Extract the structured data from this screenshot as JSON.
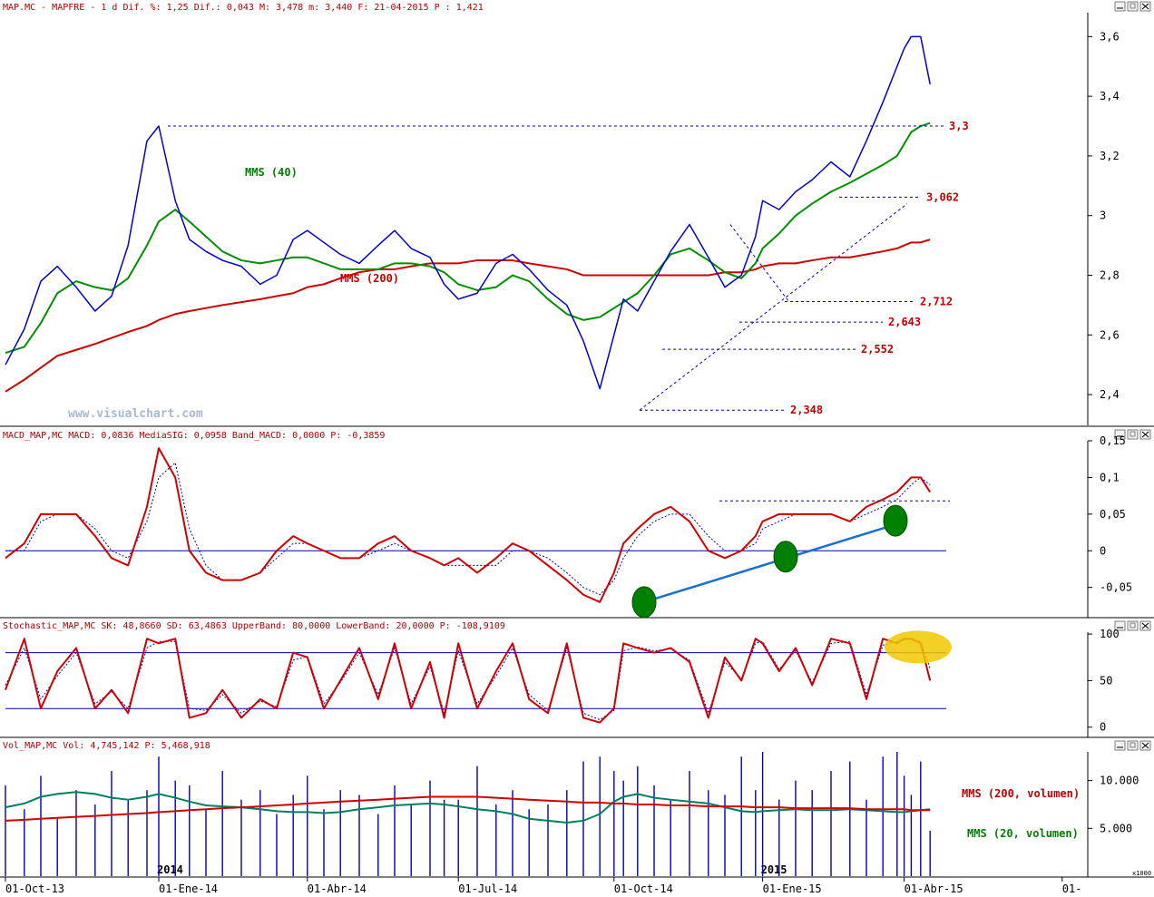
{
  "panels": {
    "price": {
      "header": "MAP.MC - MAPFRE -  1 d Dif. %: 1,25 Dif.: 0,043 M: 3,478 m: 3,440 F: 21-04-2015 P : 1,421",
      "yticks": [
        "3,6",
        "3,4",
        "3,2",
        "3",
        "2,8",
        "2,6",
        "2,4"
      ],
      "ytick_values": [
        3.6,
        3.4,
        3.2,
        3.0,
        2.8,
        2.6,
        2.4
      ],
      "ylim": [
        2.3,
        3.68
      ],
      "ma40_label": "MMS (40)",
      "ma200_label": "MMS (200)",
      "levels": [
        {
          "label": "3,3",
          "value": 3.3
        },
        {
          "label": "3,062",
          "value": 3.062
        },
        {
          "label": "2,712",
          "value": 2.712
        },
        {
          "label": "2,643",
          "value": 2.643
        },
        {
          "label": "2,552",
          "value": 2.552
        },
        {
          "label": "2,348",
          "value": 2.348
        }
      ],
      "watermark": "www.visualchart.com"
    },
    "macd": {
      "header": "MACD_MAP,MC MACD: 0,0836 MediaSIG: 0,0958 Band_MACD: 0,0000 P: -0,3859",
      "yticks": [
        "0,15",
        "0,1",
        "0,05",
        "0",
        "-0,05"
      ],
      "ytick_values": [
        0.15,
        0.1,
        0.05,
        0.0,
        -0.05
      ],
      "ylim": [
        -0.09,
        0.15
      ]
    },
    "stochastic": {
      "header": "Stochastic_MAP,MC SK: 48,8660 SD: 63,4863 UpperBand: 80,0000 LowerBand: 20,0000 P: -108,9109",
      "yticks": [
        "100",
        "50",
        "0"
      ],
      "ytick_values": [
        100,
        50,
        0
      ],
      "ylim": [
        -10,
        102
      ]
    },
    "volume": {
      "header": "Vol_MAP,MC Vol: 4,745,142 P: 5,468,918",
      "yticks": [
        "10.000",
        "5.000"
      ],
      "ytick_values": [
        10000,
        5000
      ],
      "ylim": [
        0,
        13000
      ],
      "ma200_label": "MMS (200, volumen)",
      "ma20_label": "MMS (20, volumen)",
      "unit": "x1000"
    }
  },
  "xaxis": {
    "labels": [
      "01-Oct-13",
      "01-Ene-14",
      "01-Abr-14",
      "01-Jul-14",
      "01-Oct-14",
      "01-Ene-15",
      "01-Abr-15",
      "01-"
    ],
    "positions": [
      0,
      65,
      128,
      192,
      258,
      321,
      381,
      448
    ],
    "year_labels": [
      {
        "text": "2014",
        "position": 65
      },
      {
        "text": "2015",
        "position": 321
      }
    ]
  },
  "colors": {
    "price": "#0000d0",
    "ma40": "#009000",
    "ma200": "#d00000",
    "header": "#b00000",
    "level": "#c00000",
    "trend": "#1a6fd0",
    "signal_circle": "#008000",
    "highlight": "#f0c800",
    "volume_bar": "#0000b0",
    "vol_ma20": "#008060"
  },
  "chart_data": [
    {
      "type": "line",
      "name_hint": "price panel",
      "x": [
        0,
        8,
        15,
        22,
        30,
        38,
        45,
        52,
        60,
        65,
        72,
        78,
        85,
        92,
        100,
        108,
        115,
        122,
        128,
        135,
        142,
        150,
        158,
        165,
        172,
        180,
        186,
        192,
        200,
        208,
        215,
        222,
        230,
        238,
        245,
        252,
        258,
        262,
        268,
        275,
        282,
        290,
        298,
        305,
        312,
        318,
        321,
        328,
        335,
        342,
        350,
        358,
        365,
        372,
        378,
        381,
        384,
        388,
        392
      ],
      "series": [
        {
          "values": [
            2.5,
            2.62,
            2.78,
            2.83,
            2.76,
            2.68,
            2.73,
            2.9,
            3.25,
            3.3,
            3.05,
            2.92,
            2.88,
            2.85,
            2.83,
            2.77,
            2.8,
            2.92,
            2.95,
            2.91,
            2.87,
            2.84,
            2.9,
            2.95,
            2.89,
            2.86,
            2.77,
            2.72,
            2.74,
            2.84,
            2.87,
            2.82,
            2.75,
            2.7,
            2.58,
            2.42,
            2.6,
            2.72,
            2.68,
            2.78,
            2.88,
            2.97,
            2.86,
            2.76,
            2.8,
            2.93,
            3.05,
            3.02,
            3.08,
            3.12,
            3.18,
            3.13,
            3.25,
            3.38,
            3.5,
            3.56,
            3.6,
            3.6,
            3.44
          ]
        },
        {
          "values": [
            2.54,
            2.56,
            2.64,
            2.74,
            2.78,
            2.76,
            2.75,
            2.79,
            2.9,
            2.98,
            3.02,
            2.98,
            2.93,
            2.88,
            2.85,
            2.84,
            2.85,
            2.86,
            2.86,
            2.84,
            2.82,
            2.82,
            2.82,
            2.84,
            2.84,
            2.83,
            2.81,
            2.77,
            2.75,
            2.76,
            2.8,
            2.78,
            2.72,
            2.67,
            2.65,
            2.66,
            2.69,
            2.71,
            2.74,
            2.8,
            2.87,
            2.89,
            2.85,
            2.81,
            2.79,
            2.84,
            2.89,
            2.94,
            3.0,
            3.04,
            3.08,
            3.11,
            3.14,
            3.17,
            3.2,
            3.24,
            3.28,
            3.3,
            3.31
          ]
        },
        {
          "values": [
            2.41,
            2.45,
            2.49,
            2.53,
            2.55,
            2.57,
            2.59,
            2.61,
            2.63,
            2.65,
            2.67,
            2.68,
            2.69,
            2.7,
            2.71,
            2.72,
            2.73,
            2.74,
            2.76,
            2.77,
            2.79,
            2.81,
            2.82,
            2.82,
            2.83,
            2.84,
            2.84,
            2.84,
            2.85,
            2.85,
            2.85,
            2.84,
            2.83,
            2.82,
            2.8,
            2.8,
            2.8,
            2.8,
            2.8,
            2.8,
            2.8,
            2.8,
            2.8,
            2.81,
            2.81,
            2.82,
            2.83,
            2.84,
            2.84,
            2.85,
            2.86,
            2.86,
            2.87,
            2.88,
            2.89,
            2.9,
            2.91,
            2.91,
            2.92
          ]
        }
      ]
    },
    {
      "type": "line",
      "name_hint": "macd panel",
      "x": [
        0,
        8,
        15,
        22,
        30,
        38,
        45,
        52,
        60,
        65,
        72,
        78,
        85,
        92,
        100,
        108,
        115,
        122,
        128,
        135,
        142,
        150,
        158,
        165,
        172,
        180,
        186,
        192,
        200,
        208,
        215,
        222,
        230,
        238,
        245,
        252,
        258,
        262,
        268,
        275,
        282,
        290,
        298,
        305,
        312,
        318,
        321,
        328,
        335,
        342,
        350,
        358,
        365,
        372,
        378,
        381,
        384,
        388,
        392
      ],
      "series": [
        {
          "values": [
            -0.01,
            0.01,
            0.05,
            0.05,
            0.05,
            0.02,
            -0.01,
            -0.02,
            0.06,
            0.14,
            0.1,
            0.0,
            -0.03,
            -0.04,
            -0.04,
            -0.03,
            0.0,
            0.02,
            0.01,
            0.0,
            -0.01,
            -0.01,
            0.01,
            0.02,
            0.0,
            -0.01,
            -0.02,
            -0.01,
            -0.03,
            -0.01,
            0.01,
            0.0,
            -0.02,
            -0.04,
            -0.06,
            -0.07,
            -0.03,
            0.01,
            0.03,
            0.05,
            0.06,
            0.04,
            0.0,
            -0.01,
            0.0,
            0.02,
            0.04,
            0.05,
            0.05,
            0.05,
            0.05,
            0.04,
            0.06,
            0.07,
            0.08,
            0.09,
            0.1,
            0.1,
            0.08
          ]
        },
        {
          "values": [
            0.0,
            0.0,
            0.04,
            0.05,
            0.05,
            0.03,
            0.0,
            -0.01,
            0.04,
            0.1,
            0.12,
            0.03,
            -0.02,
            -0.04,
            -0.04,
            -0.03,
            -0.01,
            0.01,
            0.01,
            0.0,
            -0.01,
            -0.01,
            0.0,
            0.01,
            0.0,
            -0.01,
            -0.02,
            -0.02,
            -0.02,
            -0.02,
            0.0,
            0.0,
            -0.01,
            -0.03,
            -0.05,
            -0.06,
            -0.04,
            -0.01,
            0.02,
            0.04,
            0.05,
            0.05,
            0.02,
            0.0,
            0.0,
            0.01,
            0.03,
            0.04,
            0.05,
            0.05,
            0.05,
            0.04,
            0.05,
            0.06,
            0.07,
            0.08,
            0.09,
            0.1,
            0.09
          ]
        }
      ]
    },
    {
      "type": "line",
      "name_hint": "stochastic panel",
      "x": [
        0,
        8,
        15,
        22,
        30,
        38,
        45,
        52,
        60,
        65,
        72,
        78,
        85,
        92,
        100,
        108,
        115,
        122,
        128,
        135,
        142,
        150,
        158,
        165,
        172,
        180,
        186,
        192,
        200,
        208,
        215,
        222,
        230,
        238,
        245,
        252,
        258,
        262,
        268,
        275,
        282,
        290,
        298,
        305,
        312,
        318,
        321,
        328,
        335,
        342,
        350,
        358,
        365,
        372,
        378,
        381,
        384,
        388,
        392
      ],
      "series": [
        {
          "values": [
            40,
            95,
            20,
            60,
            85,
            20,
            40,
            15,
            95,
            90,
            95,
            10,
            15,
            40,
            10,
            30,
            20,
            80,
            75,
            20,
            50,
            85,
            30,
            90,
            20,
            70,
            10,
            90,
            20,
            60,
            90,
            30,
            15,
            90,
            10,
            5,
            20,
            90,
            85,
            80,
            85,
            70,
            10,
            75,
            50,
            95,
            90,
            60,
            85,
            45,
            95,
            90,
            30,
            95,
            90,
            95,
            95,
            90,
            50
          ]
        },
        {
          "values": [
            45,
            85,
            30,
            55,
            80,
            25,
            38,
            20,
            85,
            92,
            92,
            20,
            18,
            35,
            15,
            28,
            22,
            72,
            76,
            25,
            48,
            80,
            35,
            85,
            25,
            65,
            15,
            82,
            25,
            55,
            85,
            35,
            18,
            85,
            15,
            8,
            18,
            82,
            86,
            82,
            84,
            72,
            15,
            70,
            52,
            90,
            92,
            62,
            82,
            48,
            90,
            92,
            35,
            88,
            92,
            94,
            94,
            92,
            63
          ]
        }
      ]
    },
    {
      "type": "bar",
      "name_hint": "volume panel",
      "x": [
        0,
        8,
        15,
        22,
        30,
        38,
        45,
        52,
        60,
        65,
        72,
        78,
        85,
        92,
        100,
        108,
        115,
        122,
        128,
        135,
        142,
        150,
        158,
        165,
        172,
        180,
        186,
        192,
        200,
        208,
        215,
        222,
        230,
        238,
        245,
        252,
        258,
        262,
        268,
        275,
        282,
        290,
        298,
        305,
        312,
        318,
        321,
        328,
        335,
        342,
        350,
        358,
        365,
        372,
        378,
        381,
        384,
        388,
        392
      ],
      "series": [
        {
          "values": [
            9500,
            7000,
            10500,
            6000,
            9000,
            7500,
            11000,
            8000,
            9000,
            12500,
            10000,
            9500,
            7000,
            11000,
            8000,
            9000,
            6500,
            8500,
            10500,
            7000,
            9000,
            8500,
            6500,
            9500,
            7500,
            10000,
            8000,
            8000,
            11500,
            7500,
            9000,
            7000,
            7500,
            9000,
            12000,
            12500,
            11000,
            10000,
            11500,
            9500,
            8000,
            11000,
            9000,
            8500,
            12500,
            9000,
            13000,
            8000,
            10000,
            9000,
            11000,
            12000,
            8000,
            12500,
            13000,
            10500,
            8500,
            12000,
            4745
          ]
        },
        {
          "values": [
            7200,
            7600,
            8300,
            8600,
            8800,
            8600,
            8200,
            8000,
            8300,
            8600,
            8200,
            7800,
            7400,
            7300,
            7200,
            7000,
            6800,
            6700,
            6700,
            6600,
            6700,
            7000,
            7200,
            7400,
            7500,
            7600,
            7500,
            7300,
            7000,
            6800,
            6500,
            6000,
            5800,
            5600,
            5800,
            6500,
            7800,
            8300,
            8600,
            8200,
            8000,
            7800,
            7600,
            7200,
            6800,
            6700,
            6800,
            6900,
            7000,
            6900,
            6900,
            7000,
            6900,
            6800,
            6700,
            6700,
            6800,
            6900,
            7000
          ]
        },
        {
          "values": [
            5800,
            5900,
            6000,
            6100,
            6200,
            6300,
            6400,
            6500,
            6600,
            6700,
            6800,
            6900,
            7000,
            7100,
            7200,
            7300,
            7400,
            7500,
            7600,
            7700,
            7800,
            7900,
            8000,
            8100,
            8200,
            8300,
            8300,
            8300,
            8300,
            8200,
            8100,
            8000,
            7900,
            7800,
            7700,
            7700,
            7600,
            7600,
            7500,
            7500,
            7400,
            7400,
            7300,
            7300,
            7300,
            7200,
            7200,
            7200,
            7100,
            7100,
            7100,
            7100,
            7000,
            7000,
            7000,
            7000,
            6900,
            6900,
            6900
          ]
        }
      ]
    }
  ]
}
